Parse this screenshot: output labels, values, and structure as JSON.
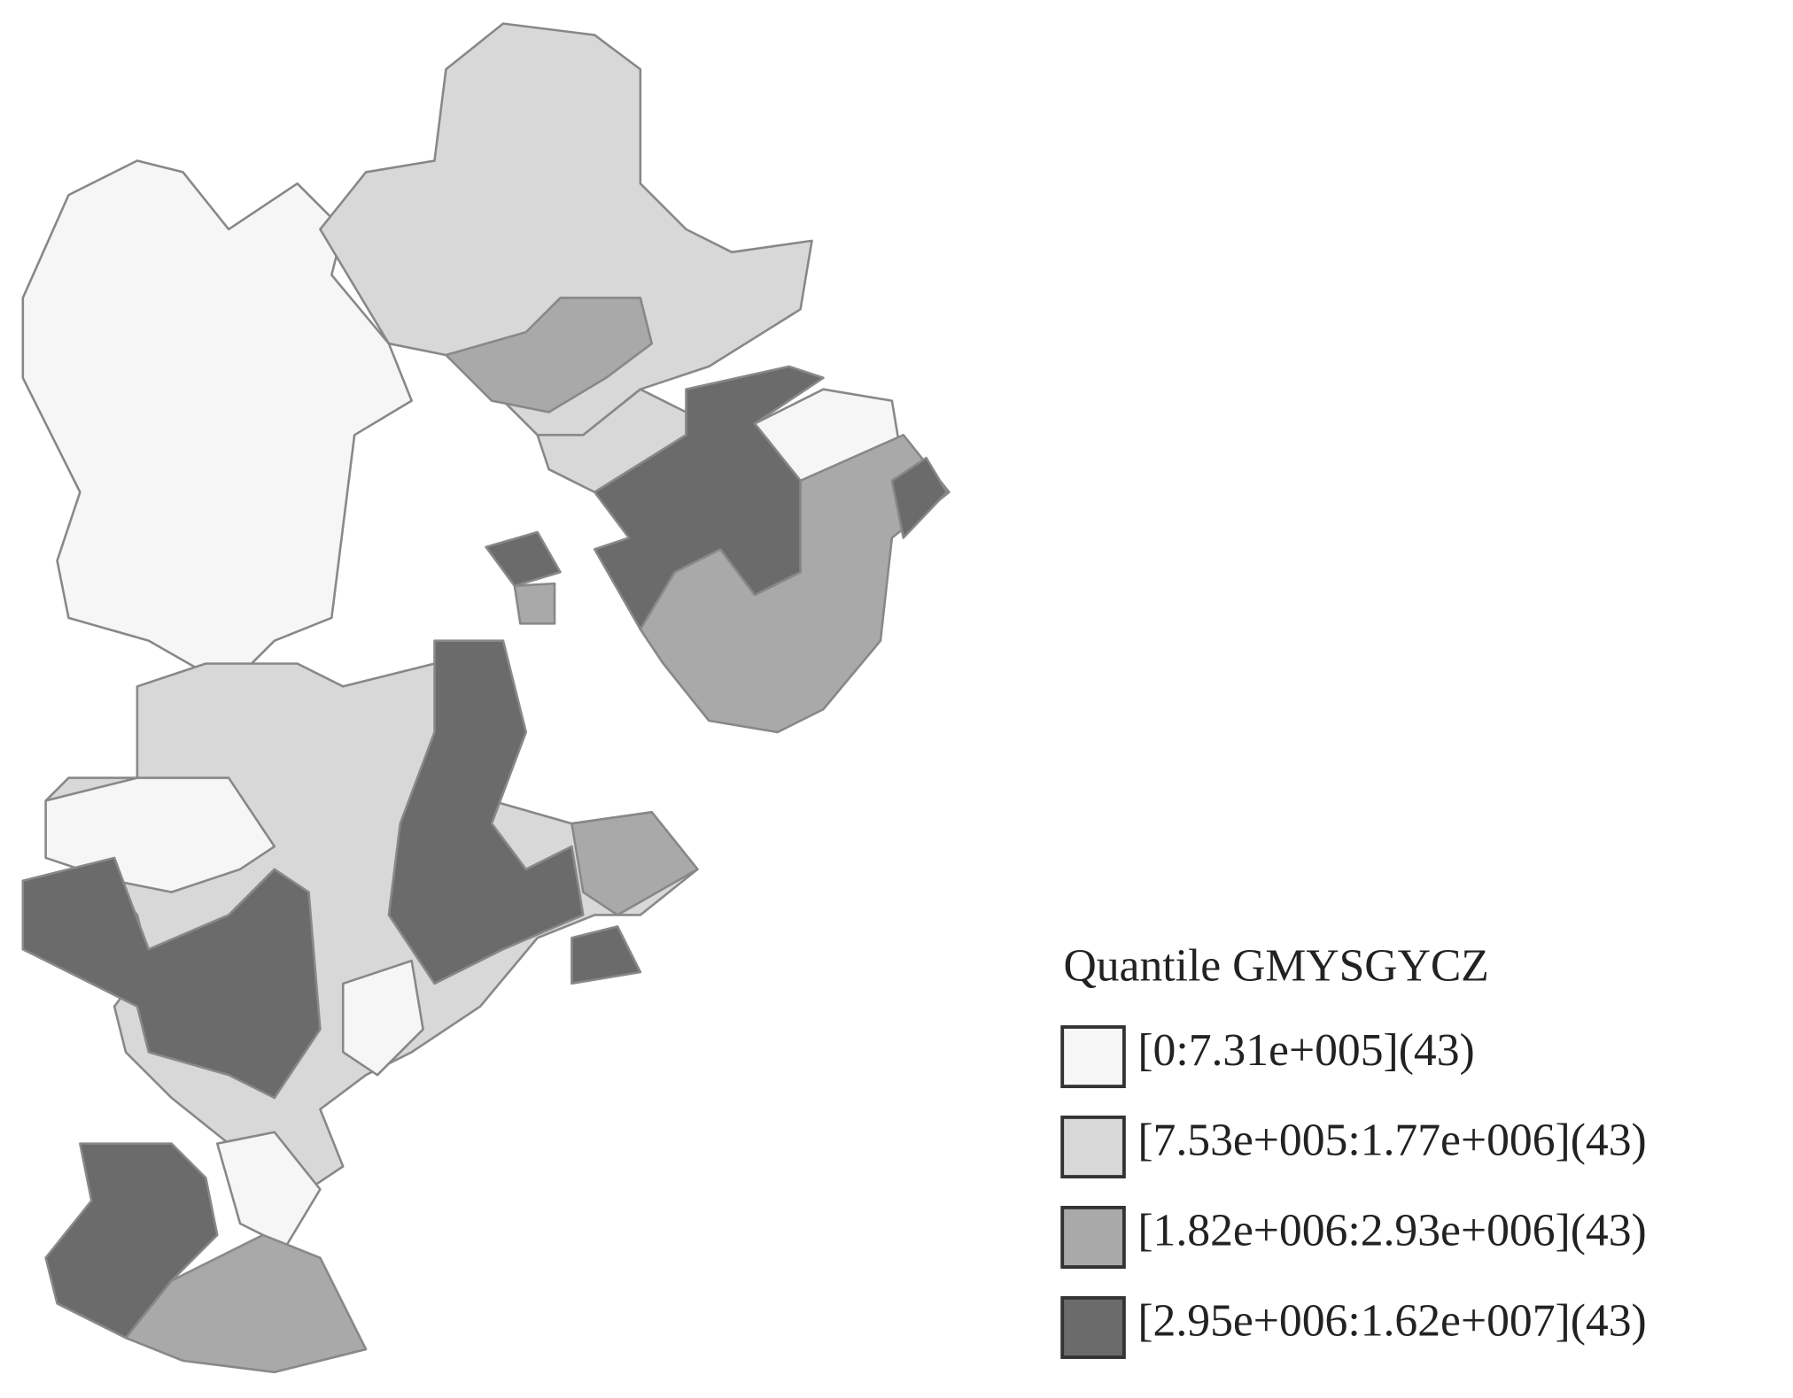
{
  "legend": {
    "title": "Quantile GMYSGYCZ",
    "items": [
      {
        "label": "[0:7.31e+005](43)",
        "color": "#f6f6f6"
      },
      {
        "label": "[7.53e+005:1.77e+006](43)",
        "color": "#d8d8d8"
      },
      {
        "label": "[1.82e+006:2.93e+006](43)",
        "color": "#a9a9a9"
      },
      {
        "label": "[2.95e+006:1.62e+007](43)",
        "color": "#6b6b6b"
      }
    ]
  }
}
